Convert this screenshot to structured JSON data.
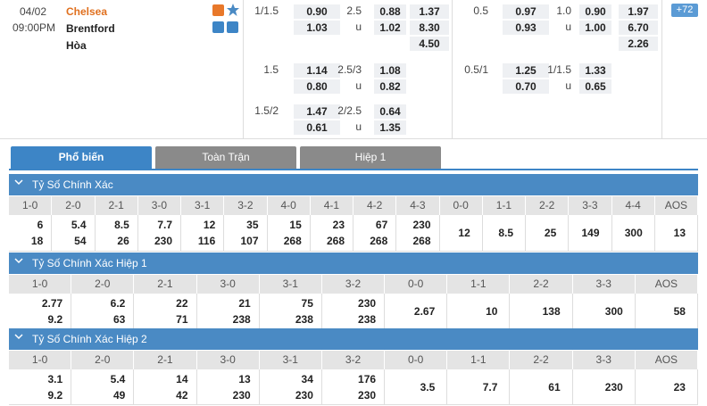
{
  "match": {
    "date": "04/02",
    "time": "09:00PM",
    "home": "Chelsea",
    "away": "Brentford",
    "draw": "Hòa"
  },
  "full_time": {
    "groups": [
      {
        "hcp": {
          "line": "1/1.5",
          "home": "0.90",
          "away": "1.03"
        },
        "ou": {
          "line": "2.5",
          "over": "0.88",
          "u": "u",
          "under": "1.02"
        }
      },
      {
        "hcp": {
          "line": "1.5",
          "home": "1.14",
          "away": "0.80"
        },
        "ou": {
          "line": "2.5/3",
          "over": "1.08",
          "u": "u",
          "under": "0.82"
        }
      },
      {
        "hcp": {
          "line": "1.5/2",
          "home": "1.47",
          "away": "0.61"
        },
        "ou": {
          "line": "2/2.5",
          "over": "0.64",
          "u": "u",
          "under": "1.35"
        }
      }
    ],
    "x12": [
      "1.37",
      "8.30",
      "4.50"
    ]
  },
  "first_half": {
    "groups": [
      {
        "hcp": {
          "line": "0.5",
          "home": "0.97",
          "away": "0.93"
        },
        "ou": {
          "line": "1.0",
          "over": "0.90",
          "u": "u",
          "under": "1.00"
        }
      },
      {
        "hcp": {
          "line": "0.5/1",
          "home": "1.25",
          "away": "0.70"
        },
        "ou": {
          "line": "1/1.5",
          "over": "1.33",
          "u": "u",
          "under": "0.65"
        }
      }
    ],
    "x12": [
      "1.97",
      "6.70",
      "2.26"
    ]
  },
  "more": "+72",
  "tabs": [
    "Phổ biến",
    "Toàn Trận",
    "Hiệp 1"
  ],
  "sections": [
    {
      "title": "Tỷ Số Chính Xác",
      "columns": [
        "1-0",
        "2-0",
        "2-1",
        "3-0",
        "3-1",
        "3-2",
        "4-0",
        "4-1",
        "4-2",
        "4-3",
        "0-0",
        "1-1",
        "2-2",
        "3-3",
        "4-4",
        "AOS"
      ],
      "values": [
        [
          "6",
          "18"
        ],
        [
          "5.4",
          "54"
        ],
        [
          "8.5",
          "26"
        ],
        [
          "7.7",
          "230"
        ],
        [
          "12",
          "116"
        ],
        [
          "35",
          "107"
        ],
        [
          "15",
          "268"
        ],
        [
          "23",
          "268"
        ],
        [
          "67",
          "268"
        ],
        [
          "230",
          "268"
        ],
        [
          "12"
        ],
        [
          "8.5"
        ],
        [
          "25"
        ],
        [
          "149"
        ],
        [
          "300"
        ],
        [
          "13"
        ]
      ]
    },
    {
      "title": "Tỷ Số Chính Xác Hiệp 1",
      "columns": [
        "1-0",
        "2-0",
        "2-1",
        "3-0",
        "3-1",
        "3-2",
        "0-0",
        "1-1",
        "2-2",
        "3-3",
        "AOS"
      ],
      "values": [
        [
          "2.77",
          "9.2"
        ],
        [
          "6.2",
          "63"
        ],
        [
          "22",
          "71"
        ],
        [
          "21",
          "238"
        ],
        [
          "75",
          "238"
        ],
        [
          "230",
          "238"
        ],
        [
          "2.67"
        ],
        [
          "10"
        ],
        [
          "138"
        ],
        [
          "300"
        ],
        [
          "58"
        ]
      ]
    },
    {
      "title": "Tỷ Số Chính Xác Hiệp 2",
      "columns": [
        "1-0",
        "2-0",
        "2-1",
        "3-0",
        "3-1",
        "3-2",
        "0-0",
        "1-1",
        "2-2",
        "3-3",
        "AOS"
      ],
      "values": [
        [
          "3.1",
          "9.2"
        ],
        [
          "5.4",
          "49"
        ],
        [
          "14",
          "42"
        ],
        [
          "13",
          "230"
        ],
        [
          "34",
          "230"
        ],
        [
          "176",
          "230"
        ],
        [
          "3.5"
        ],
        [
          "7.7"
        ],
        [
          "61"
        ],
        [
          "230"
        ],
        [
          "23"
        ]
      ]
    }
  ]
}
